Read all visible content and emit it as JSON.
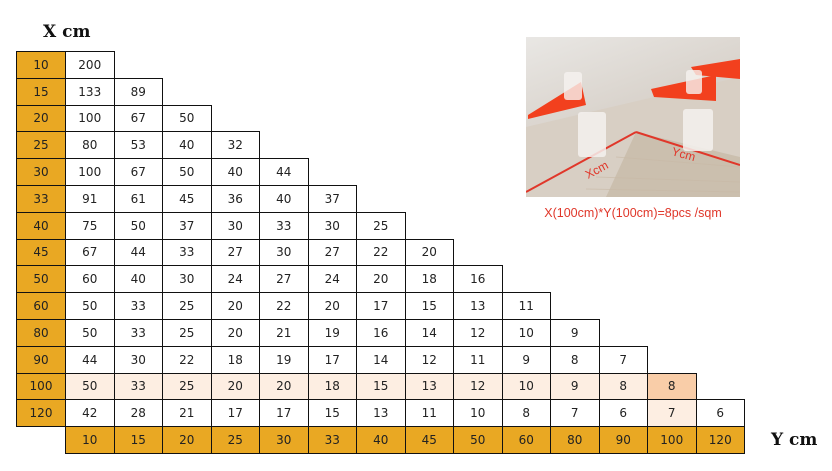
{
  "x_axis_label": "X cm",
  "y_axis_label": "Y cm",
  "row_headers": [
    "10",
    "15",
    "20",
    "25",
    "30",
    "33",
    "40",
    "45",
    "50",
    "60",
    "80",
    "90",
    "100",
    "120"
  ],
  "column_headers": [
    "10",
    "15",
    "20",
    "25",
    "30",
    "33",
    "40",
    "45",
    "50",
    "60",
    "80",
    "90",
    "100",
    "120"
  ],
  "rows": [
    [
      "200"
    ],
    [
      "133",
      "89"
    ],
    [
      "100",
      "67",
      "50"
    ],
    [
      "80",
      "53",
      "40",
      "32"
    ],
    [
      "100",
      "67",
      "50",
      "40",
      "44"
    ],
    [
      "91",
      "61",
      "45",
      "36",
      "40",
      "37"
    ],
    [
      "75",
      "50",
      "37",
      "30",
      "33",
      "30",
      "25"
    ],
    [
      "67",
      "44",
      "33",
      "27",
      "30",
      "27",
      "22",
      "20"
    ],
    [
      "60",
      "40",
      "30",
      "24",
      "27",
      "24",
      "20",
      "18",
      "16"
    ],
    [
      "50",
      "33",
      "25",
      "20",
      "22",
      "20",
      "17",
      "15",
      "13",
      "11"
    ],
    [
      "50",
      "33",
      "25",
      "20",
      "21",
      "19",
      "16",
      "14",
      "12",
      "10",
      "9"
    ],
    [
      "44",
      "30",
      "22",
      "18",
      "19",
      "17",
      "14",
      "12",
      "11",
      "9",
      "8",
      "7"
    ],
    [
      "50",
      "33",
      "25",
      "20",
      "20",
      "18",
      "15",
      "13",
      "12",
      "10",
      "9",
      "8",
      "8"
    ],
    [
      "42",
      "28",
      "21",
      "17",
      "17",
      "15",
      "13",
      "11",
      "10",
      "8",
      "7",
      "6",
      "7",
      "6"
    ]
  ],
  "highlight_row": "100",
  "highlight_column": "100",
  "colors": {
    "header": "#e9a823",
    "highlight": "#fdeee2",
    "highlight_strong": "#f9cda8",
    "caption": "#e0372a"
  },
  "photo": {
    "label_x": "Xcm",
    "label_y": "Ycm"
  },
  "caption": "X(100cm)*Y(100cm)=8pcs /sqm"
}
